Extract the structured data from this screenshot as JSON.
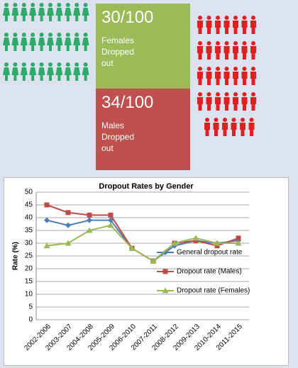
{
  "infographic": {
    "female_fraction": "30/100",
    "female_label": "Females Dropped out",
    "male_fraction": "34/100",
    "male_label": "Males Dropped out"
  },
  "chart_data": {
    "type": "line",
    "title": "Dropout Rates by Gender",
    "y_label": "Rate (%)",
    "categories": [
      "2002-2006",
      "2003-2007",
      "2004-2008",
      "2005-2009",
      "2006-2010",
      "2007-2011",
      "2008-2012",
      "2009-2013",
      "2010-2014",
      "2011-2015"
    ],
    "series": [
      {
        "name": "General dropout rate",
        "color": "#4a7ebb",
        "marker": "diamond",
        "values": [
          39,
          37,
          39,
          39,
          28,
          23,
          29,
          31,
          30,
          31
        ]
      },
      {
        "name": "Dropout rate (Males)",
        "color": "#be4b48",
        "marker": "square",
        "values": [
          45,
          42,
          41,
          41,
          28,
          23,
          30,
          31,
          29,
          32
        ]
      },
      {
        "name": "Dropout rate (Females)",
        "color": "#98b954",
        "marker": "triangle",
        "values": [
          29,
          30,
          35,
          37,
          28,
          23,
          30,
          32,
          30,
          30
        ]
      }
    ],
    "ylim": [
      0,
      50
    ],
    "yticks": [
      0,
      5,
      10,
      15,
      20,
      25,
      30,
      35,
      40,
      45,
      50
    ],
    "grid": true
  }
}
